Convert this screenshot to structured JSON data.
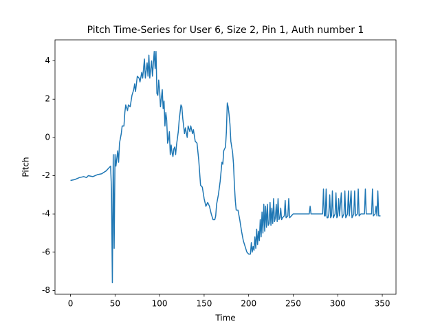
{
  "chart_data": {
    "type": "line",
    "title": "Pitch Time-Series for User 6, Size 2, Pin 1, Auth number 1",
    "x_label": "Time",
    "y_label": "Pitch",
    "xlim": [
      -17.4,
      365.4
    ],
    "ylim": [
      -8.2,
      5.1
    ],
    "xticks": [
      0,
      50,
      100,
      150,
      200,
      250,
      300,
      350
    ],
    "yticks": [
      -8,
      -6,
      -4,
      -2,
      0,
      2,
      4
    ],
    "grid": false,
    "series": [
      {
        "name": "Pitch",
        "color": "#1f77b4",
        "x": [
          0,
          5,
          10,
          15,
          18,
          20,
          25,
          30,
          35,
          40,
          43,
          45,
          46,
          47,
          48,
          49,
          50,
          51,
          53,
          54,
          55,
          57,
          58,
          60,
          61,
          62,
          64,
          65,
          67,
          69,
          71,
          72,
          73,
          75,
          77,
          78,
          80,
          81,
          83,
          84,
          86,
          87,
          88,
          89,
          91,
          92,
          94,
          95,
          96,
          97,
          98,
          99,
          100,
          101,
          103,
          104,
          105,
          106,
          107,
          108,
          109,
          110,
          111,
          112,
          113,
          114,
          115,
          116,
          117,
          118,
          119,
          121,
          122,
          124,
          125,
          126,
          128,
          129,
          131,
          132,
          134,
          135,
          137,
          138,
          140,
          142,
          144,
          146,
          148,
          150,
          152,
          154,
          156,
          158,
          160,
          162,
          163,
          164,
          166,
          168,
          170,
          171,
          172,
          174,
          175,
          176,
          177,
          178,
          179,
          180,
          182,
          183,
          184,
          185,
          186,
          188,
          190,
          192,
          194,
          196,
          198,
          200,
          202,
          203,
          204,
          205,
          206,
          207,
          208,
          209,
          210,
          211,
          212,
          213,
          214,
          215,
          216,
          217,
          218,
          219,
          220,
          221,
          222,
          223,
          224,
          225,
          226,
          227,
          228,
          229,
          230,
          231,
          232,
          233,
          234,
          235,
          236,
          237,
          238,
          240,
          241,
          242,
          244,
          245,
          246,
          248,
          250,
          255,
          260,
          265,
          268,
          269,
          270,
          275,
          280,
          283,
          284,
          285,
          286,
          287,
          288,
          289,
          290,
          291,
          292,
          293,
          294,
          295,
          297,
          298,
          299,
          300,
          301,
          302,
          304,
          305,
          307,
          308,
          309,
          311,
          312,
          313,
          315,
          316,
          318,
          319,
          320,
          322,
          323,
          324,
          326,
          330,
          331,
          332,
          335,
          338,
          339,
          340,
          342,
          343,
          344,
          345,
          346,
          348
        ],
        "values": [
          -2.25,
          -2.2,
          -2.1,
          -2.05,
          -2.1,
          -2.0,
          -2.05,
          -1.95,
          -1.9,
          -1.75,
          -1.6,
          -1.5,
          -2.7,
          -7.6,
          -0.9,
          -5.8,
          -0.9,
          -1.5,
          -0.7,
          -1.3,
          -0.3,
          0.2,
          0.6,
          0.6,
          1.3,
          1.7,
          1.4,
          1.7,
          1.6,
          2.2,
          2.5,
          2.8,
          2.4,
          3.2,
          3.1,
          2.9,
          3.4,
          3.1,
          4.1,
          3.1,
          3.9,
          3.2,
          4.3,
          3.1,
          4.0,
          3.2,
          4.5,
          3.6,
          4.5,
          2.3,
          2.2,
          3.0,
          2.5,
          1.6,
          2.5,
          1.5,
          1.9,
          0.6,
          1.3,
          0.9,
          -0.3,
          -0.1,
          0.3,
          -0.9,
          -0.4,
          -0.8,
          -1.0,
          -0.6,
          -0.5,
          -0.9,
          -0.4,
          0.3,
          0.9,
          1.7,
          1.6,
          1.0,
          0.2,
          0.5,
          0.0,
          0.6,
          0.3,
          0.6,
          0.2,
          0.4,
          -0.2,
          -0.3,
          -1.2,
          -2.5,
          -2.6,
          -3.2,
          -3.6,
          -3.4,
          -3.6,
          -4.0,
          -4.3,
          -4.3,
          -4.1,
          -3.5,
          -3.0,
          -2.3,
          -1.3,
          -1.4,
          -0.7,
          -0.5,
          0.3,
          1.8,
          1.6,
          1.2,
          0.7,
          -0.2,
          -0.8,
          -1.4,
          -2.5,
          -3.3,
          -3.8,
          -3.8,
          -4.3,
          -4.9,
          -5.4,
          -5.7,
          -6.0,
          -6.1,
          -6.1,
          -5.5,
          -6.0,
          -5.7,
          -5.9,
          -5.2,
          -5.8,
          -4.8,
          -5.6,
          -4.9,
          -5.4,
          -4.3,
          -5.2,
          -3.9,
          -5.0,
          -3.5,
          -4.9,
          -3.6,
          -4.7,
          -3.5,
          -4.6,
          -4.5,
          -3.4,
          -4.6,
          -3.7,
          -4.5,
          -3.2,
          -4.4,
          -4.2,
          -3.5,
          -4.4,
          -3.2,
          -4.3,
          -4.2,
          -3.7,
          -4.3,
          -4.2,
          -4.1,
          -3.3,
          -4.2,
          -4.1,
          -3.2,
          -4.2,
          -4.1,
          -4.0,
          -4.0,
          -4.0,
          -4.0,
          -4.0,
          -3.6,
          -4.0,
          -4.0,
          -4.0,
          -4.0,
          -2.7,
          -4.1,
          -4.1,
          -2.7,
          -4.2,
          -4.2,
          -4.0,
          -3.0,
          -4.2,
          -4.1,
          -2.8,
          -4.2,
          -4.0,
          -2.9,
          -4.2,
          -4.1,
          -3.2,
          -4.1,
          -2.9,
          -4.2,
          -4.0,
          -2.8,
          -4.2,
          -4.0,
          -2.8,
          -4.1,
          -2.8,
          -4.2,
          -4.0,
          -2.8,
          -4.1,
          -4.0,
          -2.7,
          -4.1,
          -4.0,
          -4.0,
          -2.7,
          -4.0,
          -4.0,
          -4.0,
          -2.7,
          -4.1,
          -4.0,
          -3.6,
          -4.1,
          -2.8,
          -4.1,
          -4.1
        ]
      }
    ]
  }
}
